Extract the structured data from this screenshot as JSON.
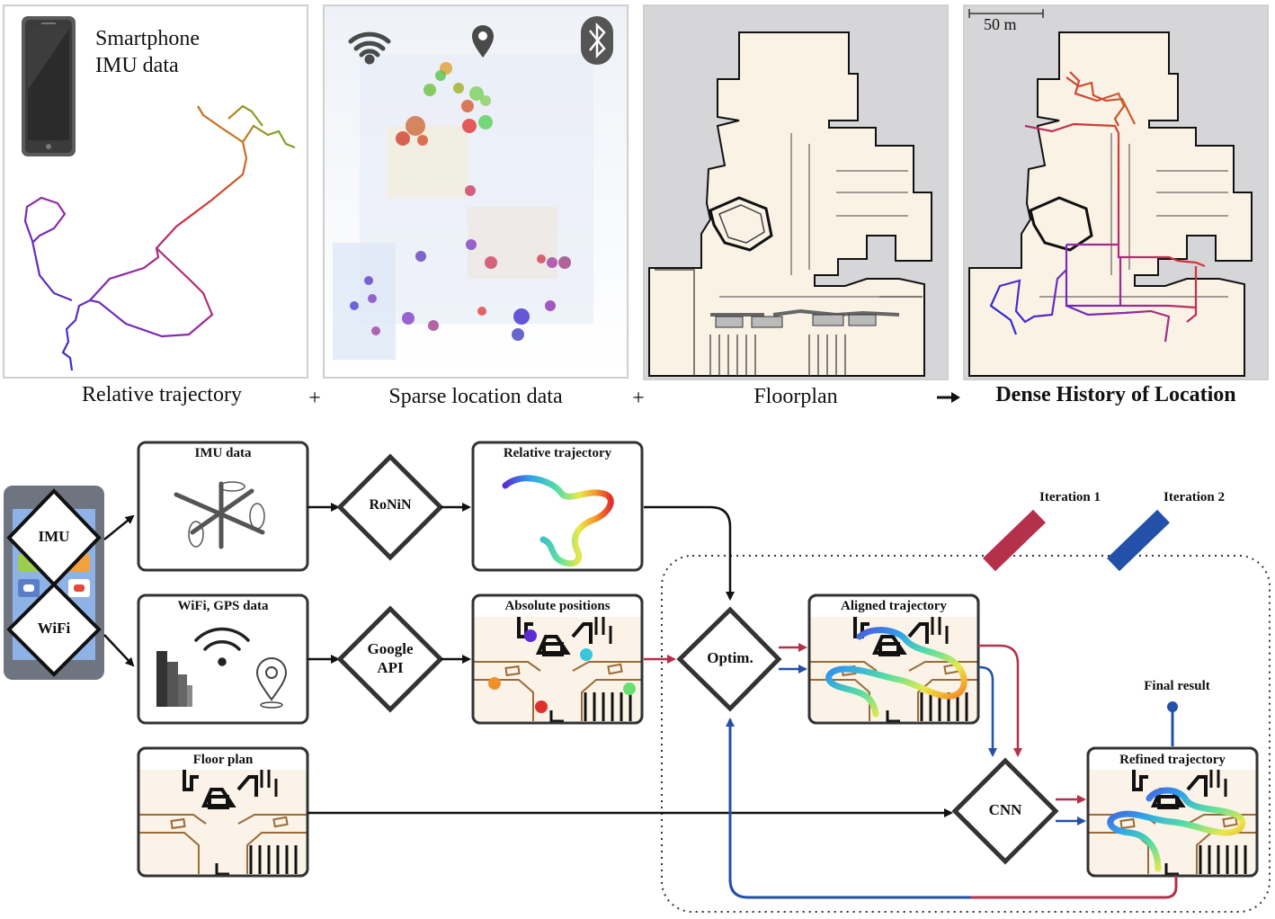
{
  "top_row": {
    "panel1_title_line1": "Smartphone",
    "panel1_title_line2": "IMU data",
    "scale_label": "50 m",
    "captions": [
      "Relative trajectory",
      "Sparse location data",
      "Floorplan",
      "Dense History of Location"
    ],
    "operators": [
      "+",
      "+"
    ]
  },
  "pipeline": {
    "phone_labels": [
      "IMU",
      "WiFi"
    ],
    "boxes": {
      "imu": "IMU data",
      "wifi": "WiFi, GPS data",
      "relative": "Relative trajectory",
      "absolute": "Absolute positions",
      "floorplan": "Floor plan",
      "aligned": "Aligned trajectory",
      "refined": "Refined trajectory"
    },
    "diamonds": {
      "ronin": "RoNiN",
      "google_line1": "Google",
      "google_line2": "API",
      "optim": "Optim.",
      "cnn": "CNN"
    },
    "legend": {
      "iter1": "Iteration 1",
      "iter2": "Iteration 2",
      "iter1_color": "#b5304a",
      "iter2_color": "#2350a8"
    },
    "final_result": "Final result"
  }
}
